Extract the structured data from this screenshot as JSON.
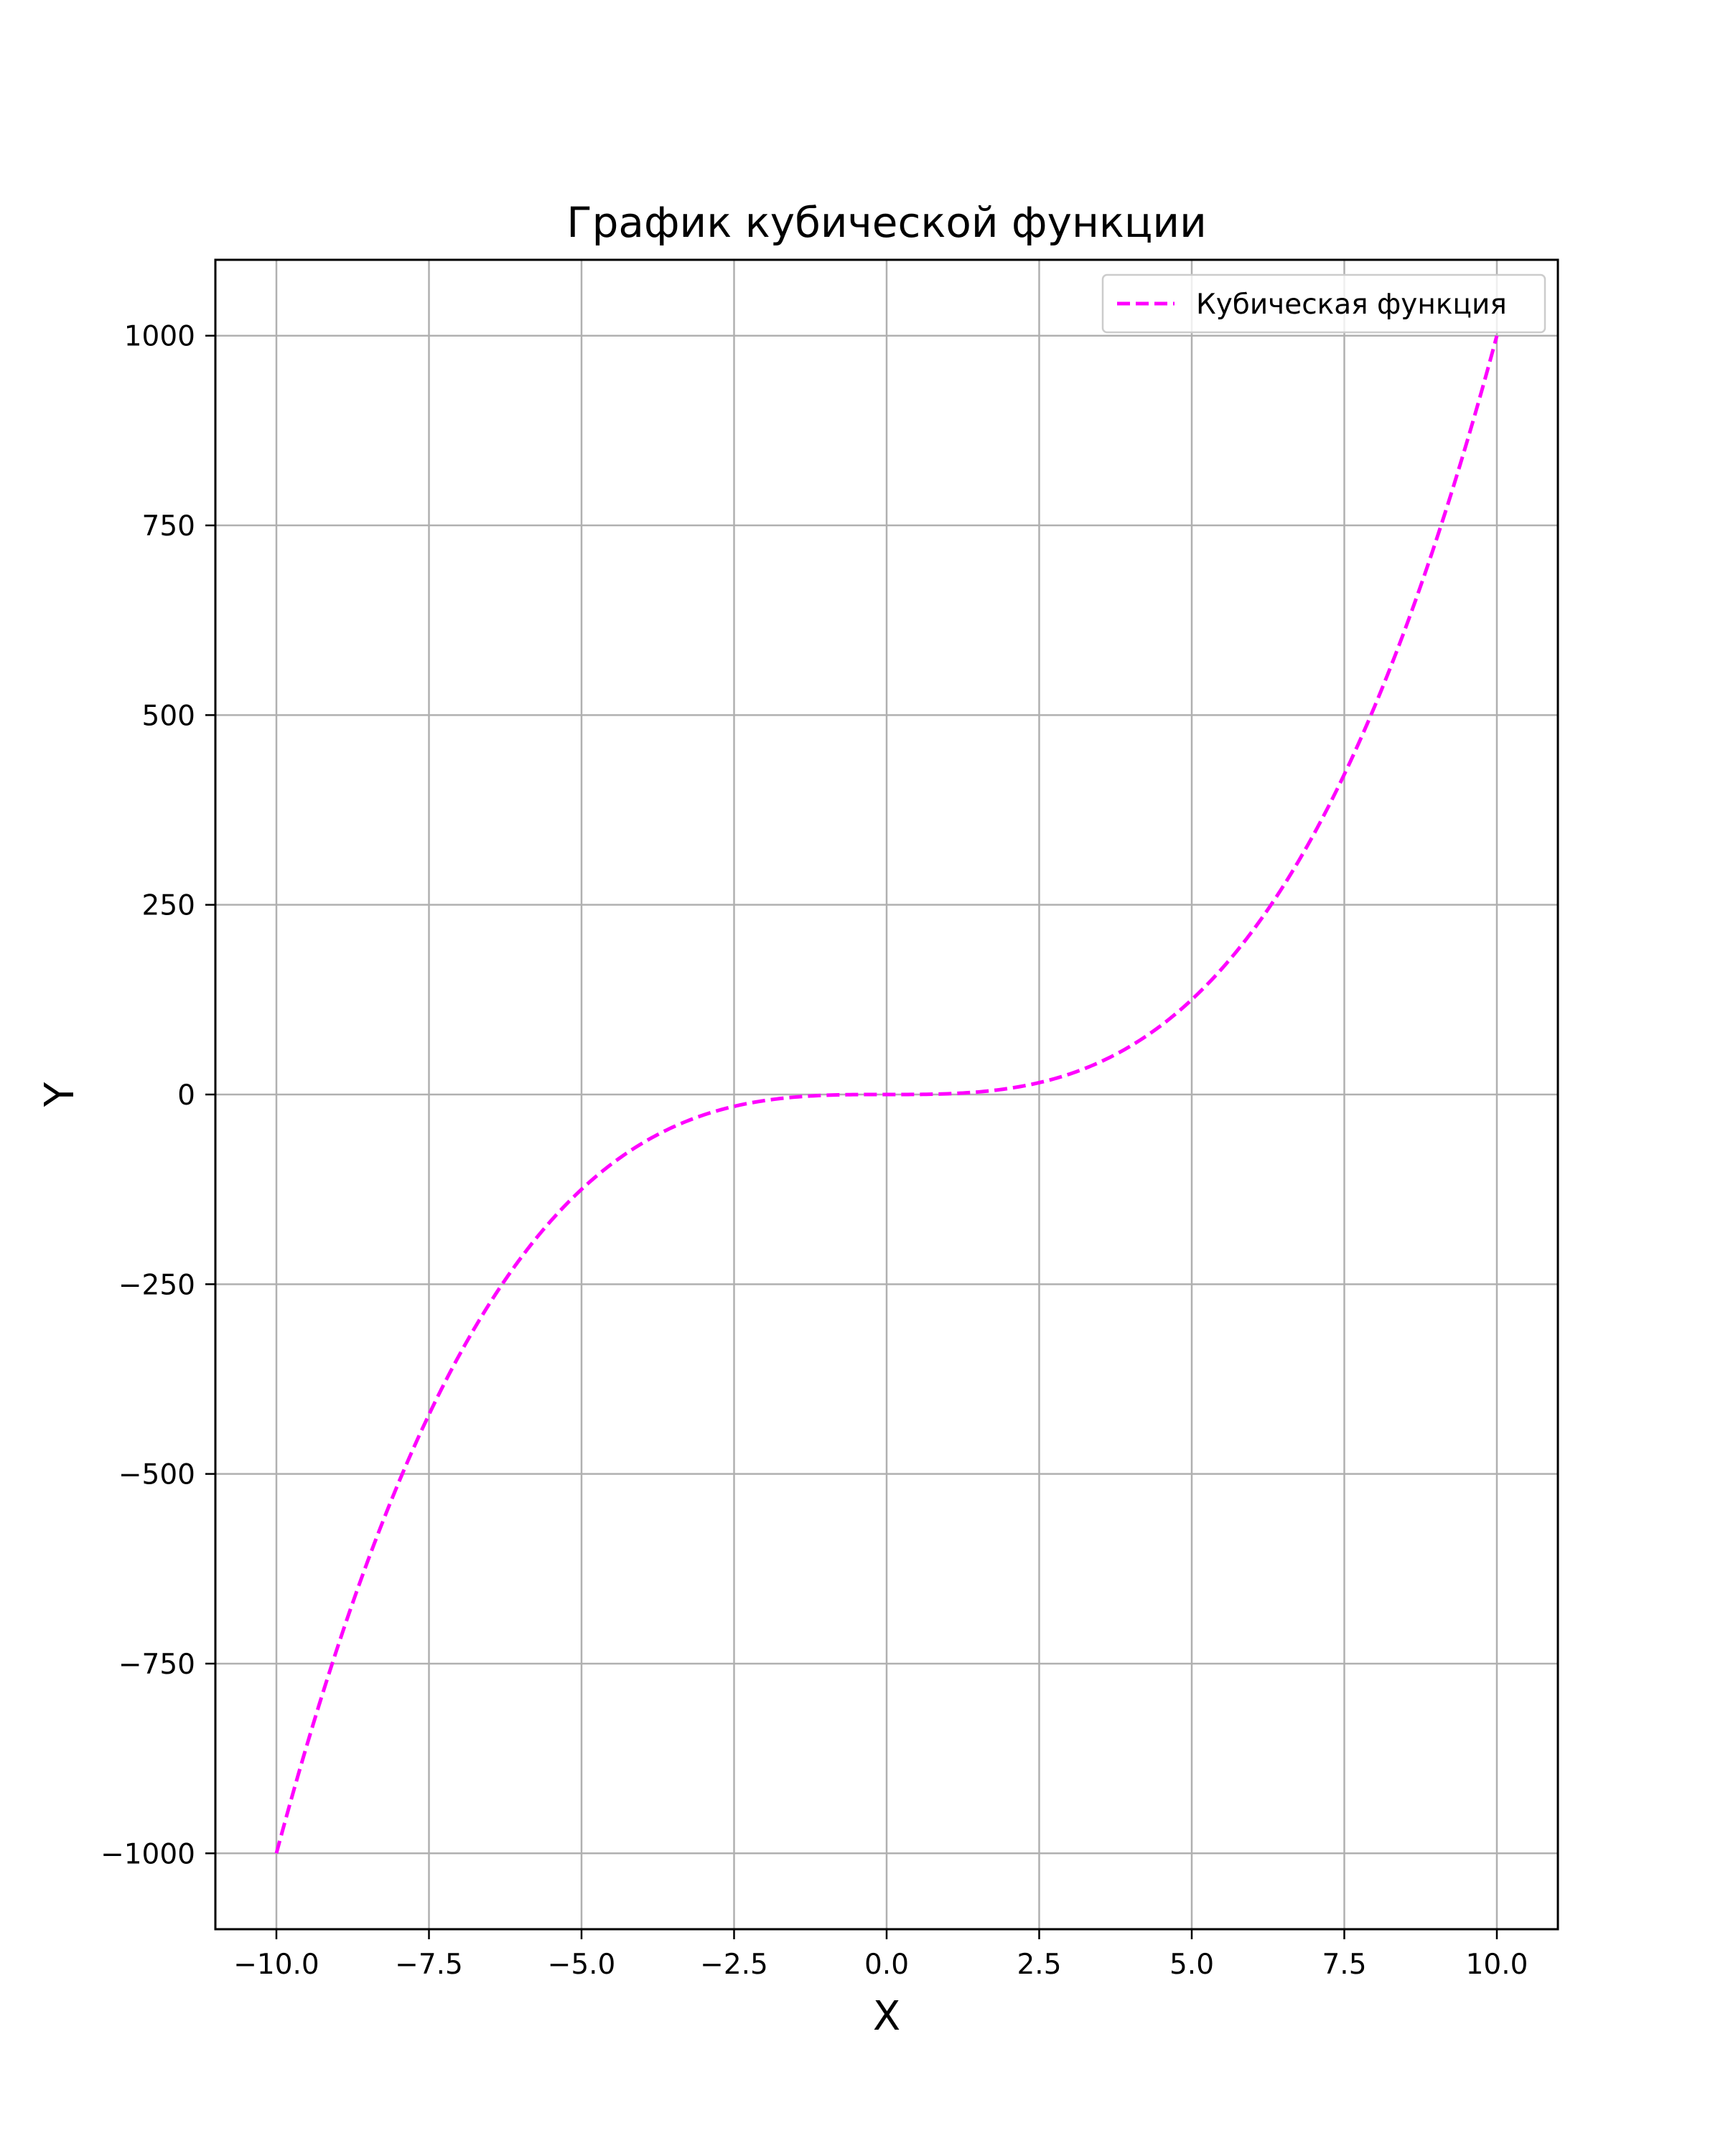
{
  "chart_data": {
    "type": "line",
    "title": "График кубической функции",
    "xlabel": "X",
    "ylabel": "Y",
    "xlim": [
      -11.0,
      11.0
    ],
    "ylim": [
      -1100,
      1100
    ],
    "x_ticks": [
      -10.0,
      -7.5,
      -5.0,
      -2.5,
      0.0,
      2.5,
      5.0,
      7.5,
      10.0
    ],
    "x_tick_labels": [
      "−10.0",
      "−7.5",
      "−5.0",
      "−2.5",
      "0.0",
      "2.5",
      "5.0",
      "7.5",
      "10.0"
    ],
    "y_ticks": [
      -1000,
      -750,
      -500,
      -250,
      0,
      250,
      500,
      750,
      1000
    ],
    "y_tick_labels": [
      "−1000",
      "−750",
      "−500",
      "−250",
      "0",
      "250",
      "500",
      "750",
      "1000"
    ],
    "grid": true,
    "legend_position": "top-right",
    "series": [
      {
        "name": "Кубическая функция",
        "color": "#ff00ff",
        "line_style": "dashed",
        "function": "y = x^3",
        "x": [
          -10.0,
          -9.0,
          -8.0,
          -7.0,
          -6.0,
          -5.0,
          -4.0,
          -3.0,
          -2.0,
          -1.0,
          0.0,
          1.0,
          2.0,
          3.0,
          4.0,
          5.0,
          6.0,
          7.0,
          8.0,
          9.0,
          10.0
        ],
        "y": [
          -1000,
          -729,
          -512,
          -343,
          -216,
          -125,
          -64,
          -27,
          -8,
          -1,
          0,
          1,
          8,
          27,
          64,
          125,
          216,
          343,
          512,
          729,
          1000
        ]
      }
    ]
  }
}
